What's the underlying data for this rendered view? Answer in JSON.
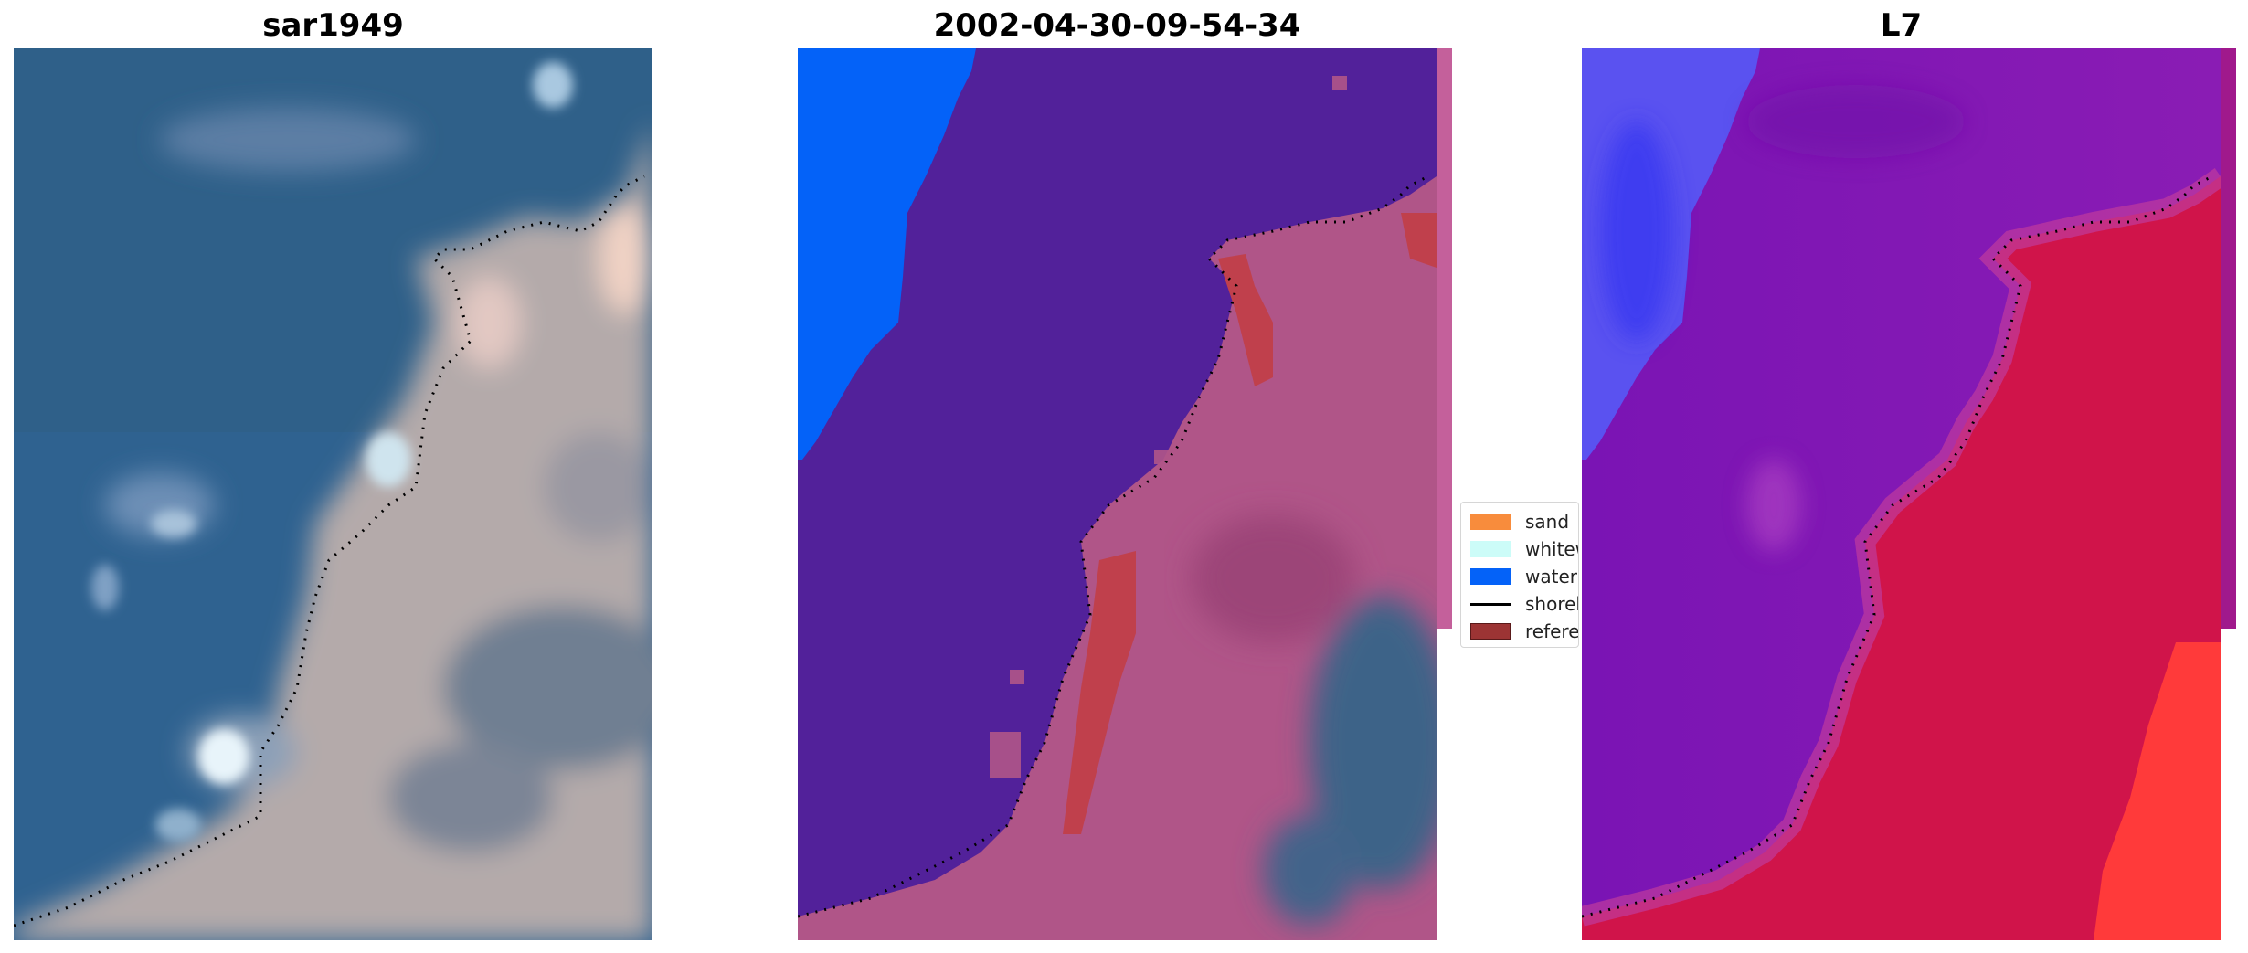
{
  "panels": [
    {
      "title": "sar1949"
    },
    {
      "title": "2002-04-30-09-54-34"
    },
    {
      "title": "L7"
    }
  ],
  "legend": {
    "items": [
      {
        "label": "sand",
        "color": "#f88c3c",
        "kind": "patch"
      },
      {
        "label": "whitew",
        "color": "#ccfcf8",
        "kind": "patch"
      },
      {
        "label": "water",
        "color": "#0462f8",
        "kind": "patch"
      },
      {
        "label": "shorel",
        "color": "#000000",
        "kind": "line"
      },
      {
        "label": "referen",
        "color": "#9c3434",
        "kind": "patch"
      }
    ]
  },
  "colors": {
    "rgb_water": "#2f6290",
    "rgb_land": "#b4aaaa",
    "class_water": "#0462f8",
    "class_other": "#52219a",
    "class_land": "#b05588",
    "class_reference": "#c0404c",
    "index_water": "#5a52f0",
    "index_mid": "#8a1cb4",
    "index_land": "#d0144a",
    "index_bright": "#ff3a3a"
  }
}
